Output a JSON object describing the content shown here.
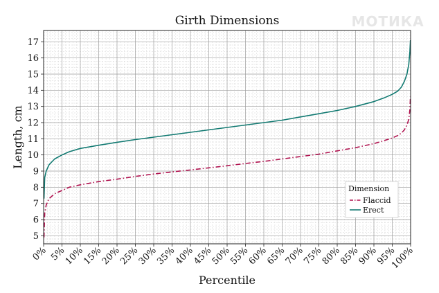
{
  "watermark": "МОТИКА",
  "chart_data": {
    "type": "line",
    "title": "Girth Dimensions",
    "xlabel": "Percentile",
    "ylabel": "Length, cm",
    "xlim": [
      0,
      100
    ],
    "ylim": [
      4.5,
      17.7
    ],
    "grid": true,
    "legend_position": "right",
    "legend_title": "Dimension",
    "x_ticks": [
      0,
      5,
      10,
      15,
      20,
      25,
      30,
      35,
      40,
      45,
      50,
      55,
      60,
      65,
      70,
      75,
      80,
      85,
      90,
      95,
      100
    ],
    "x_tick_labels": [
      "0%",
      "5%",
      "10%",
      "15%",
      "20%",
      "25%",
      "30%",
      "35%",
      "40%",
      "45%",
      "50%",
      "55%",
      "60%",
      "65%",
      "70%",
      "75%",
      "80%",
      "85%",
      "90%",
      "95%",
      "100%"
    ],
    "y_ticks": [
      5,
      6,
      7,
      8,
      9,
      10,
      11,
      12,
      13,
      14,
      15,
      16,
      17
    ],
    "series": [
      {
        "name": "Flaccid",
        "color": "#b0124f",
        "style": "dash-dot",
        "x": [
          0.1,
          0.3,
          0.7,
          1.5,
          3,
          5,
          7,
          10,
          15,
          20,
          25,
          30,
          35,
          40,
          45,
          50,
          55,
          60,
          65,
          70,
          75,
          80,
          85,
          90,
          93,
          95,
          96.5,
          97.5,
          98.3,
          99,
          99.5,
          99.8,
          99.95
        ],
        "y": [
          4.9,
          6.4,
          6.9,
          7.3,
          7.6,
          7.8,
          8.0,
          8.15,
          8.35,
          8.5,
          8.67,
          8.82,
          8.95,
          9.07,
          9.2,
          9.33,
          9.47,
          9.6,
          9.75,
          9.9,
          10.05,
          10.25,
          10.45,
          10.7,
          10.9,
          11.05,
          11.2,
          11.35,
          11.55,
          11.85,
          12.2,
          12.8,
          13.6
        ]
      },
      {
        "name": "Erect",
        "color": "#127a72",
        "style": "solid",
        "x": [
          0.1,
          0.3,
          0.7,
          1.5,
          3,
          5,
          7,
          10,
          15,
          20,
          25,
          30,
          35,
          40,
          45,
          50,
          55,
          60,
          65,
          70,
          75,
          80,
          85,
          90,
          93,
          95,
          96.5,
          97.5,
          98.3,
          99,
          99.5,
          99.8,
          99.95
        ],
        "y": [
          7.3,
          8.6,
          9.0,
          9.4,
          9.75,
          10.0,
          10.2,
          10.4,
          10.6,
          10.78,
          10.95,
          11.1,
          11.25,
          11.4,
          11.55,
          11.7,
          11.85,
          12.0,
          12.15,
          12.35,
          12.55,
          12.75,
          13.0,
          13.3,
          13.55,
          13.75,
          13.95,
          14.2,
          14.55,
          15.0,
          15.6,
          16.4,
          17.1
        ]
      }
    ]
  }
}
